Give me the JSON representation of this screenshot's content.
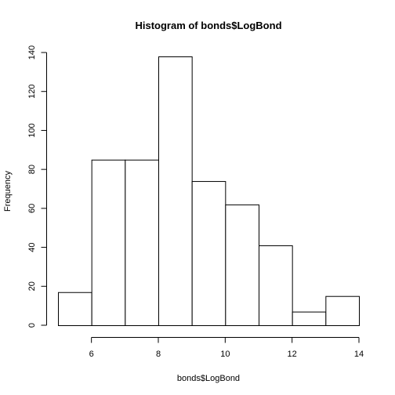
{
  "chart_data": {
    "type": "bar",
    "title": "Histogram of bonds$LogBond",
    "xlabel": "bonds$LogBond",
    "ylabel": "Frequency",
    "bins": [
      {
        "start": 5,
        "end": 6,
        "count": 17
      },
      {
        "start": 6,
        "end": 7,
        "count": 85
      },
      {
        "start": 7,
        "end": 8,
        "count": 85
      },
      {
        "start": 8,
        "end": 9,
        "count": 138
      },
      {
        "start": 9,
        "end": 10,
        "count": 74
      },
      {
        "start": 10,
        "end": 11,
        "count": 62
      },
      {
        "start": 11,
        "end": 12,
        "count": 41
      },
      {
        "start": 12,
        "end": 13,
        "count": 7
      },
      {
        "start": 13,
        "end": 14,
        "count": 15
      }
    ],
    "xlim": [
      5,
      14
    ],
    "ylim": [
      0,
      140
    ],
    "x_ticks": [
      "6",
      "8",
      "10",
      "12",
      "14"
    ],
    "y_ticks": [
      "0",
      "20",
      "40",
      "60",
      "80",
      "100",
      "120",
      "140"
    ],
    "grid": false
  }
}
